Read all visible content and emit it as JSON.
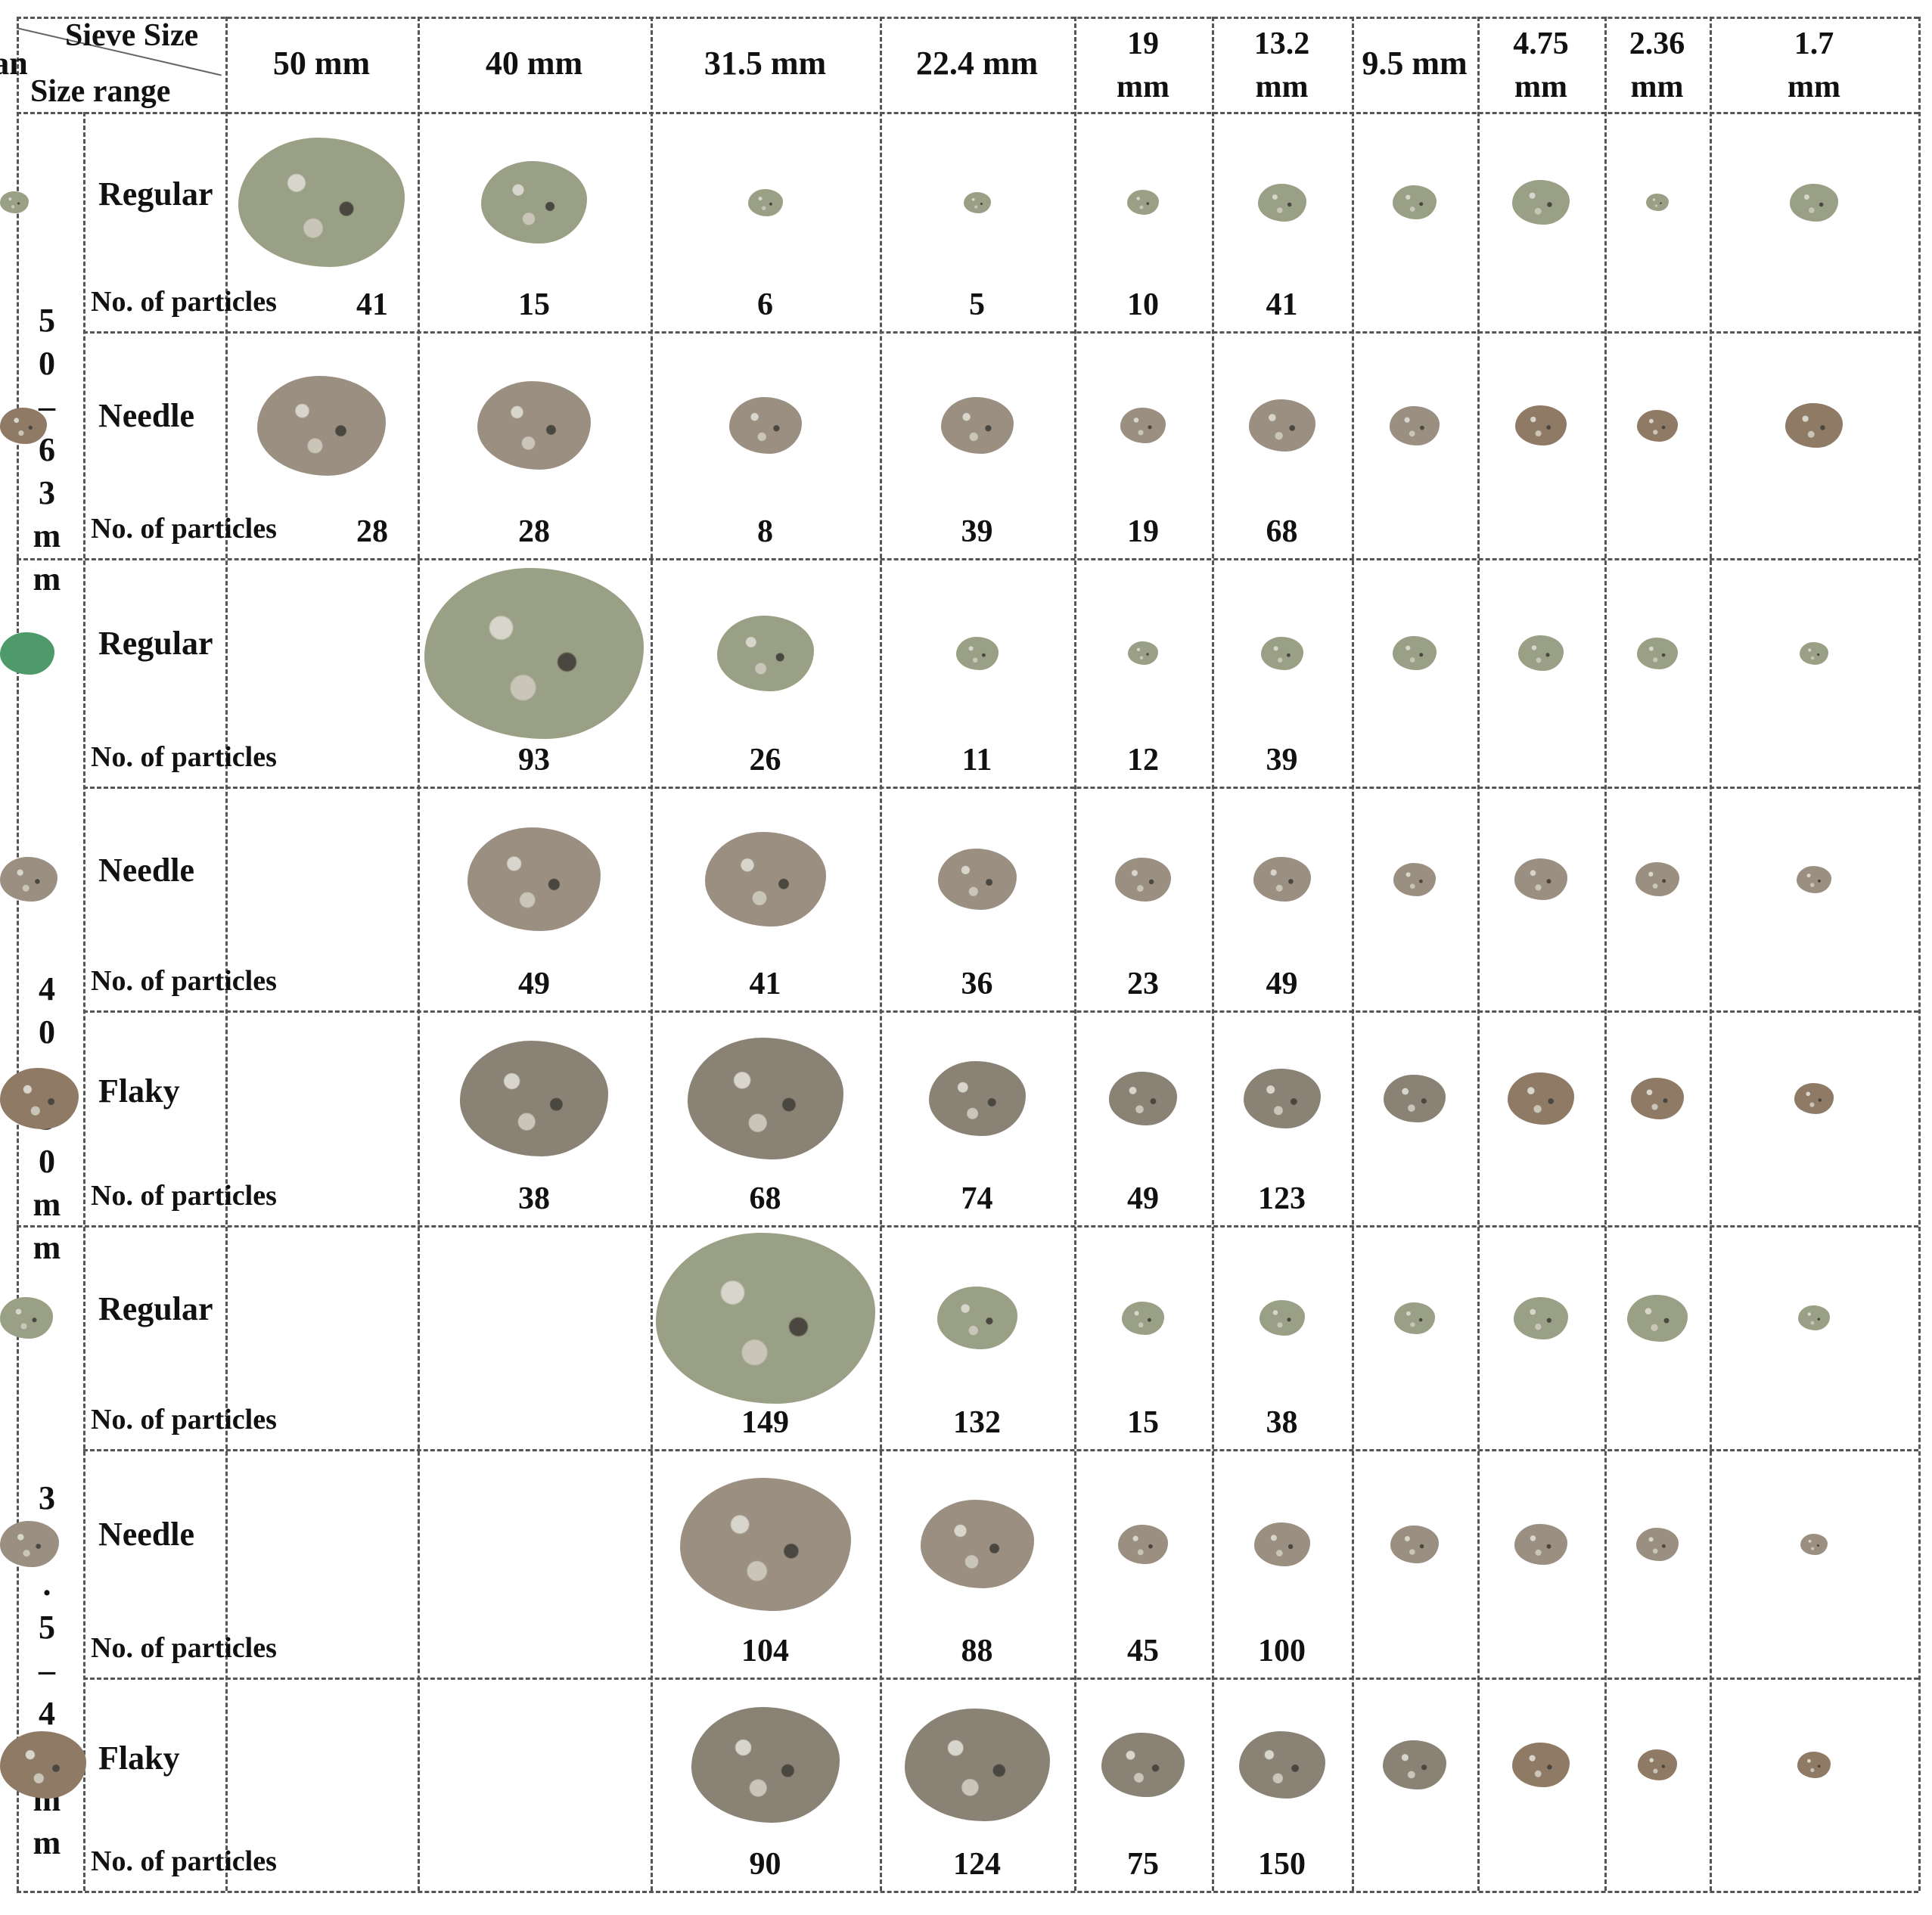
{
  "header": {
    "corner_top": "Sieve Size",
    "corner_bottom": "Size range",
    "sieves": [
      "50 mm",
      "40 mm",
      "31.5 mm",
      "22.4 mm",
      "19\nmm",
      "13.2\nmm",
      "9.5 mm",
      "4.75\nmm",
      "2.36\nmm",
      "1.7\nmm",
      "Pan"
    ]
  },
  "size_ranges": [
    {
      "label": "5\n0\n–\n6\n3\nm\nm"
    },
    {
      "label": "4\n0\n–\n5\n0\nm\nm"
    },
    {
      "label": "3\n1\n.\n5\n–\n4\n0\nm\nm"
    }
  ],
  "particle_label": "No. of particles",
  "rows": [
    {
      "shape": "Regular",
      "counts": [
        "41",
        "15",
        "6",
        "5",
        "10",
        "41"
      ]
    },
    {
      "shape": "Needle",
      "counts": [
        "28",
        "28",
        "8",
        "39",
        "19",
        "68"
      ]
    },
    {
      "shape": "Regular",
      "counts": [
        "93",
        "26",
        "11",
        "12",
        "39"
      ]
    },
    {
      "shape": "Needle",
      "counts": [
        "49",
        "41",
        "36",
        "23",
        "49"
      ]
    },
    {
      "shape": "Flaky",
      "counts": [
        "38",
        "68",
        "74",
        "49",
        "123"
      ]
    },
    {
      "shape": "Regular",
      "counts": [
        "149",
        "132",
        "15",
        "38"
      ]
    },
    {
      "shape": "Needle",
      "counts": [
        "104",
        "88",
        "45",
        "100"
      ]
    },
    {
      "shape": "Flaky",
      "counts": [
        "90",
        "124",
        "75",
        "150"
      ]
    }
  ],
  "colors": {
    "regular_aggregate": "#9aa085",
    "needle_aggregate": "#9b8f82",
    "flaky_aggregate": "#8a8275",
    "green_dust": "#4f9a6a",
    "grid": "#555555"
  }
}
